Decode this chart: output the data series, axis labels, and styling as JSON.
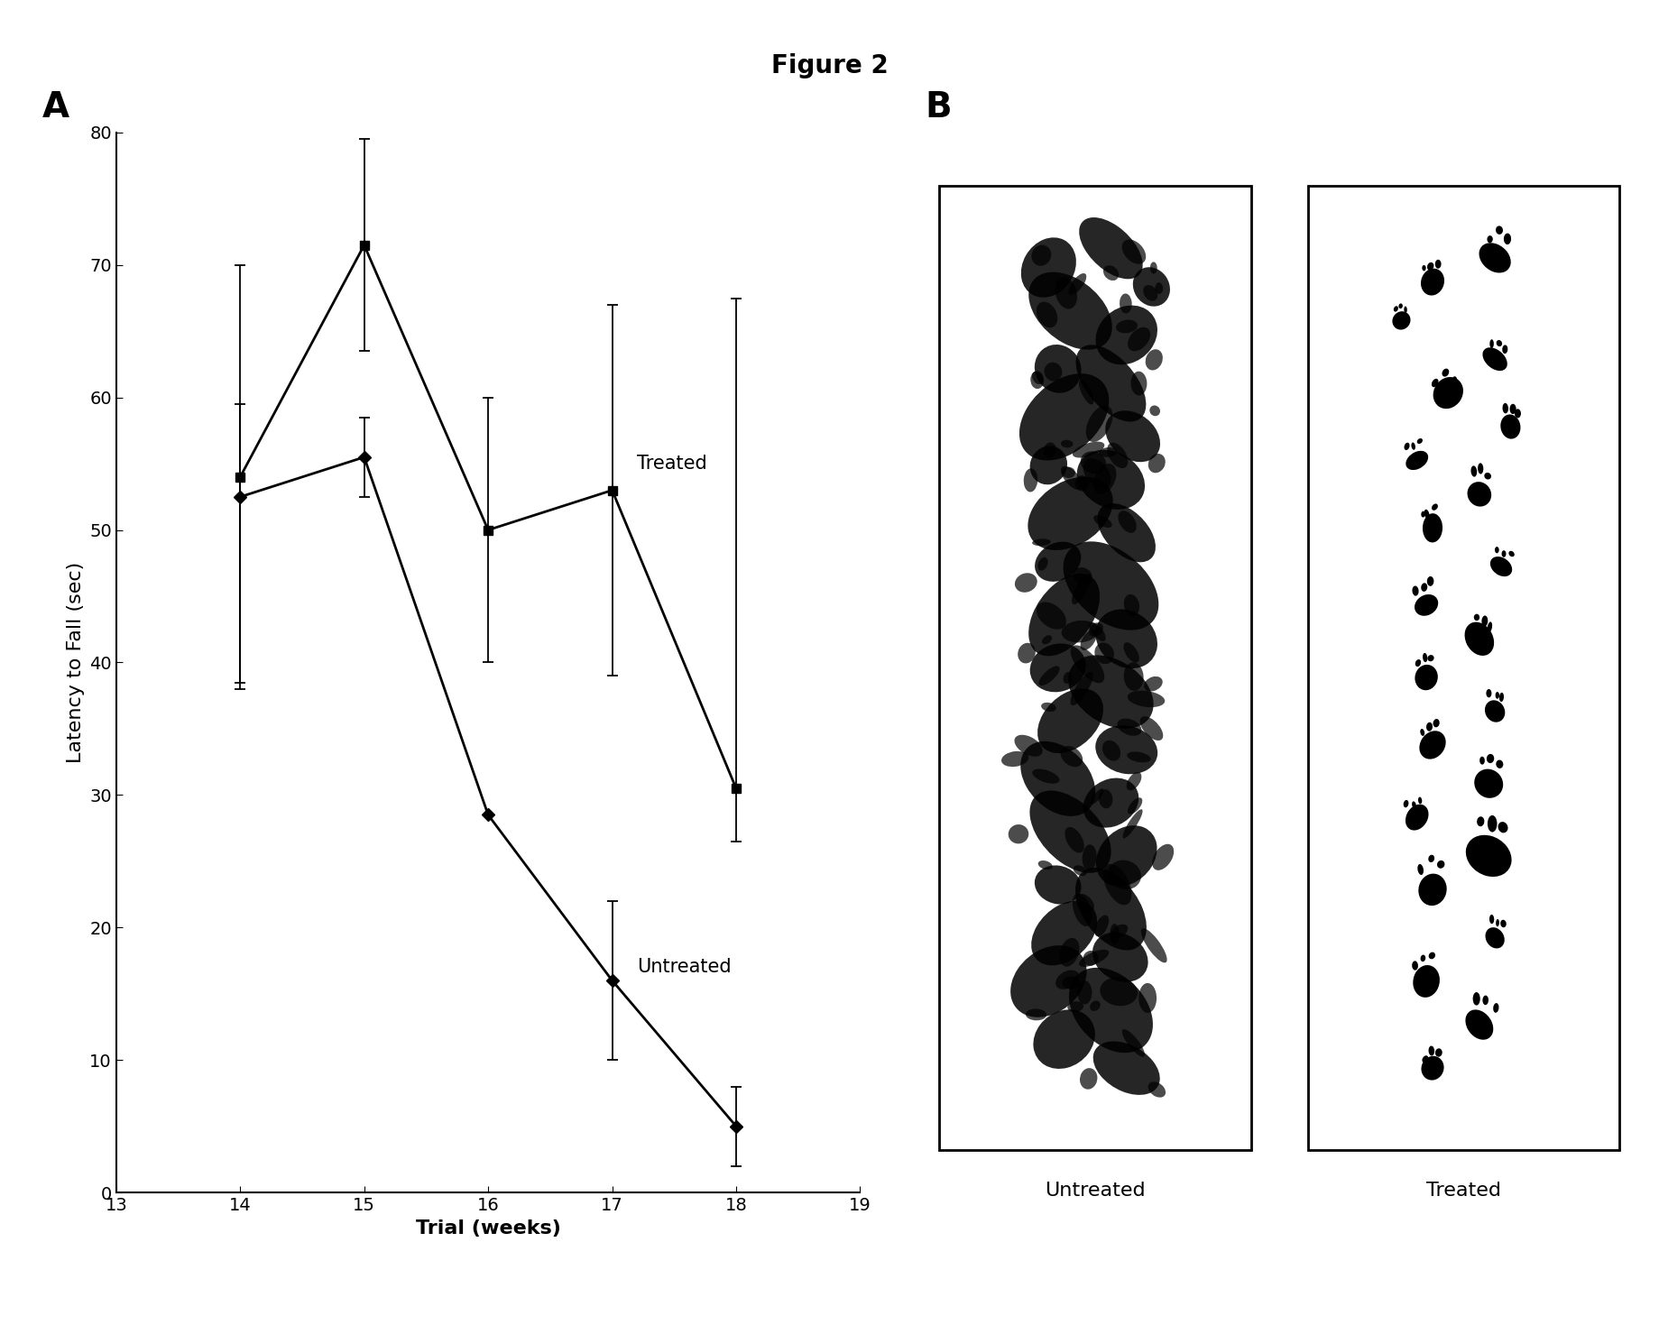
{
  "title": "Figure 2",
  "panel_A_label": "A",
  "panel_B_label": "B",
  "xlabel": "Trial (weeks)",
  "ylabel": "Latency to Fall (sec)",
  "xlim": [
    13,
    19
  ],
  "ylim": [
    0,
    80
  ],
  "xticks": [
    13,
    14,
    15,
    16,
    17,
    18,
    19
  ],
  "yticks": [
    0,
    10,
    20,
    30,
    40,
    50,
    60,
    70,
    80
  ],
  "treated_x": [
    14,
    15,
    16,
    17,
    18
  ],
  "treated_y": [
    54,
    71.5,
    50,
    53,
    30.5
  ],
  "treated_yerr_upper": [
    16,
    8,
    10,
    14,
    37
  ],
  "treated_yerr_lower": [
    16,
    8,
    10,
    14,
    4
  ],
  "untreated_x": [
    14,
    15,
    16,
    17,
    18
  ],
  "untreated_y": [
    52.5,
    55.5,
    28.5,
    16,
    5
  ],
  "untreated_yerr_upper": [
    7,
    3,
    0,
    6,
    3
  ],
  "untreated_yerr_lower": [
    14,
    3,
    0,
    6,
    3
  ],
  "treated_label": "Treated",
  "untreated_label": "Untreated",
  "line_color": "#000000",
  "bg_color": "#ffffff",
  "marker_size": 7,
  "line_width": 2.0,
  "title_fontsize": 20,
  "axis_label_fontsize": 16,
  "tick_fontsize": 14,
  "annotation_fontsize": 15,
  "panel_label_fontsize": 28
}
